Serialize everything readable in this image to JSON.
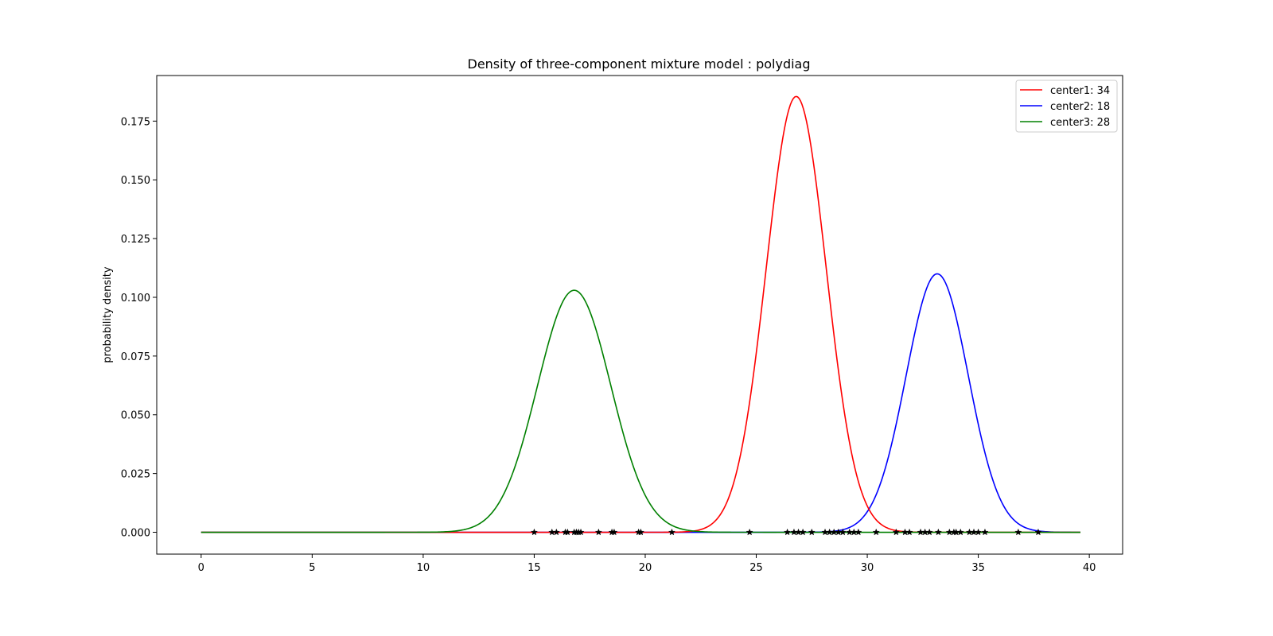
{
  "chart_data": {
    "type": "line",
    "title": "Density of three-component mixture model : polydiag",
    "xlabel": "",
    "ylabel": "probability density",
    "xlim": [
      -2,
      41.5
    ],
    "ylim": [
      -0.0093,
      0.1944
    ],
    "x_ticks": [
      0,
      5,
      10,
      15,
      20,
      25,
      30,
      35,
      40
    ],
    "y_ticks": [
      0.0,
      0.025,
      0.05,
      0.075,
      0.1,
      0.125,
      0.15,
      0.175
    ],
    "x_tick_labels": [
      "0",
      "5",
      "10",
      "15",
      "20",
      "25",
      "30",
      "35",
      "40"
    ],
    "y_tick_labels": [
      "0.000",
      "0.025",
      "0.050",
      "0.075",
      "0.100",
      "0.125",
      "0.150",
      "0.175"
    ],
    "x_range": [
      0,
      39.6
    ],
    "grid": false,
    "legend_position": "top-right",
    "series": [
      {
        "name": "center1: 34",
        "color": "#ff0000",
        "mean": 26.8,
        "sd": 1.35,
        "peak": 0.1855
      },
      {
        "name": "center2: 18",
        "color": "#0000ff",
        "mean": 33.15,
        "sd": 1.4,
        "peak": 0.11
      },
      {
        "name": "center3: 28",
        "color": "#008000",
        "mean": 16.8,
        "sd": 1.65,
        "peak": 0.103
      }
    ],
    "observations": {
      "marker": "star",
      "color": "#000000",
      "y": 0,
      "x": [
        15.0,
        15.8,
        16.0,
        16.4,
        16.5,
        16.8,
        16.9,
        17.0,
        17.1,
        17.9,
        18.5,
        18.6,
        19.7,
        19.8,
        21.2,
        24.7,
        26.4,
        26.7,
        26.9,
        27.1,
        27.5,
        28.1,
        28.3,
        28.5,
        28.7,
        28.9,
        29.2,
        29.4,
        29.6,
        30.4,
        31.3,
        31.7,
        31.9,
        32.4,
        32.6,
        32.8,
        33.2,
        33.7,
        33.9,
        34.0,
        34.2,
        34.6,
        34.8,
        35.0,
        35.3,
        36.8,
        37.7
      ]
    }
  }
}
